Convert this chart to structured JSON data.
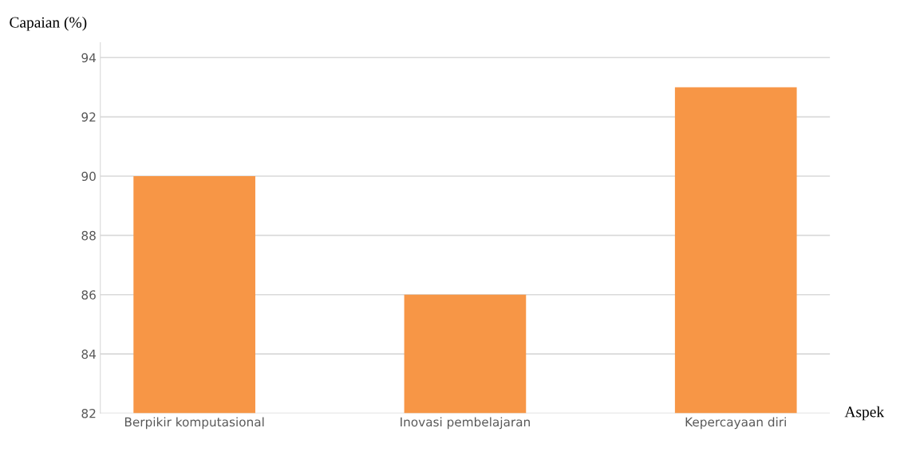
{
  "chart_data": {
    "type": "bar",
    "categories": [
      "Berpikir komputasional",
      "Inovasi pembelajaran",
      "Kepercayaan diri"
    ],
    "values": [
      90,
      86,
      93
    ],
    "color": "#f79646",
    "ylim": [
      82,
      94.5
    ],
    "yticks": [
      82,
      84,
      86,
      88,
      90,
      92,
      94
    ],
    "ylabel": "Capaian (%)",
    "xlabel": "Aspek",
    "grid": "y"
  }
}
